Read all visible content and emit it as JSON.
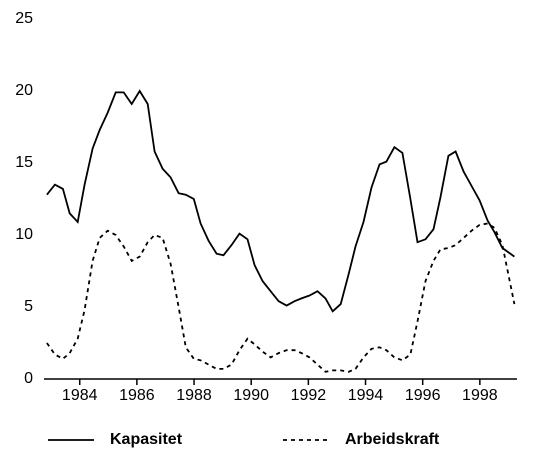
{
  "chart_data": {
    "type": "line",
    "x": [
      1982.85,
      1983.13,
      1983.41,
      1983.65,
      1983.93,
      1984.17,
      1984.45,
      1984.7,
      1984.98,
      1985.26,
      1985.54,
      1985.82,
      1986.1,
      1986.38,
      1986.62,
      1986.9,
      1987.18,
      1987.46,
      1987.71,
      1987.99,
      1988.23,
      1988.51,
      1988.79,
      1989.03,
      1989.31,
      1989.59,
      1989.87,
      1990.12,
      1990.4,
      1990.68,
      1990.96,
      1991.24,
      1991.52,
      1991.76,
      1992.04,
      1992.32,
      1992.6,
      1992.85,
      1993.13,
      1993.41,
      1993.65,
      1993.93,
      1994.21,
      1994.49,
      1994.73,
      1995.01,
      1995.29,
      1995.57,
      1995.82,
      1996.1,
      1996.38,
      1996.62,
      1996.9,
      1997.15,
      1997.43,
      1997.71,
      1997.99,
      1998.27,
      1998.51,
      1998.79,
      1999.21
    ],
    "series": [
      {
        "name": "Kapasitet",
        "color": "#000000",
        "dash": "solid",
        "values": [
          12.8,
          13.5,
          13.2,
          11.5,
          10.9,
          13.5,
          16,
          17.3,
          18.5,
          19.9,
          19.9,
          19.1,
          20,
          19.1,
          15.8,
          14.6,
          14,
          12.9,
          12.8,
          12.5,
          10.8,
          9.6,
          8.7,
          8.6,
          9.3,
          10.1,
          9.7,
          7.9,
          6.8,
          6.1,
          5.4,
          5.1,
          5.4,
          5.6,
          5.8,
          6.1,
          5.6,
          4.7,
          5.2,
          7.3,
          9.2,
          10.9,
          13.3,
          14.9,
          15.1,
          16.1,
          15.7,
          12.5,
          9.5,
          9.7,
          10.4,
          12.6,
          15.5,
          15.8,
          14.4,
          13.4,
          12.4,
          11,
          10.2,
          9.1,
          8.5
        ]
      },
      {
        "name": "Arbeidskraft",
        "color": "#000000",
        "dash": "dashed",
        "values": [
          2.5,
          1.7,
          1.4,
          1.8,
          2.8,
          4.8,
          8.2,
          9.8,
          10.3,
          10,
          9.2,
          8.2,
          8.5,
          9.5,
          10,
          9.8,
          8,
          5,
          2.2,
          1.4,
          1.3,
          1,
          0.7,
          0.7,
          1,
          2,
          2.8,
          2.4,
          1.9,
          1.5,
          1.8,
          2,
          2,
          1.8,
          1.5,
          1,
          0.5,
          0.6,
          0.6,
          0.5,
          0.7,
          1.5,
          2.1,
          2.2,
          2,
          1.5,
          1.3,
          1.7,
          4,
          6.8,
          8.2,
          9,
          9.1,
          9.3,
          9.8,
          10.3,
          10.7,
          10.8,
          10.5,
          9.3,
          5.2
        ]
      }
    ],
    "xlim": [
      1982.75,
      1999.3
    ],
    "xticks": [
      1984,
      1986,
      1988,
      1990,
      1992,
      1994,
      1996,
      1998
    ],
    "ylim": [
      0,
      25
    ],
    "yticks": [
      0,
      5,
      10,
      15,
      20,
      25
    ],
    "grid": false,
    "legend": "bottom"
  }
}
